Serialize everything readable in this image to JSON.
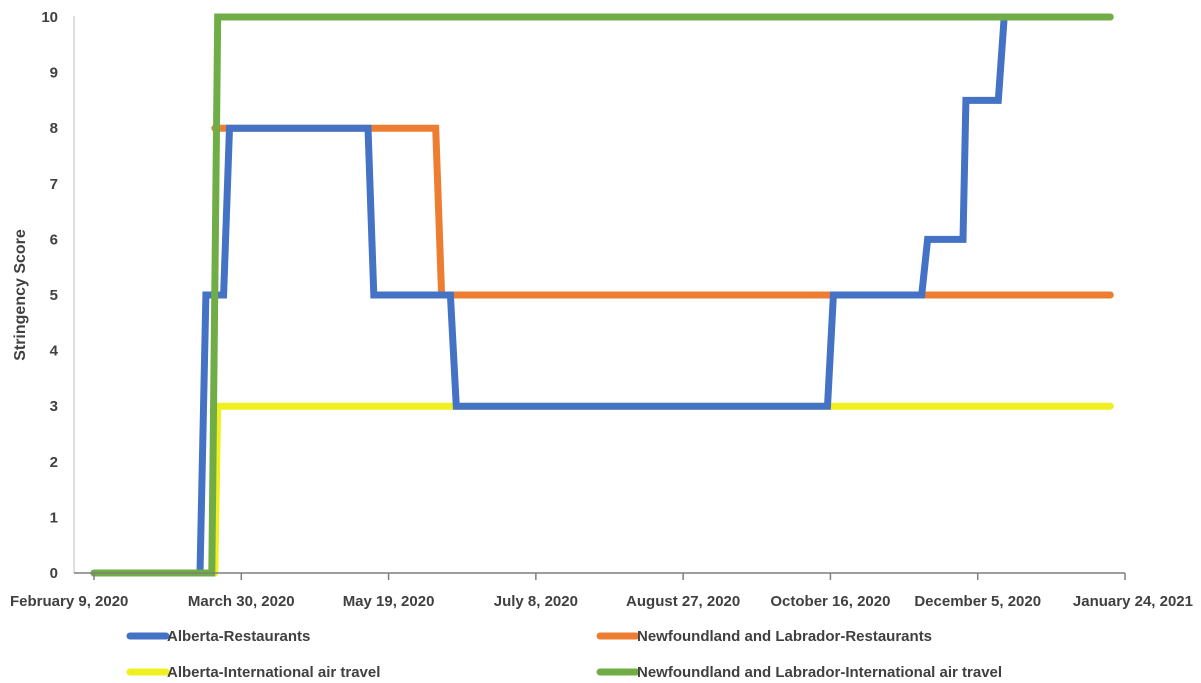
{
  "chart_data": {
    "type": "line",
    "title": "",
    "xlabel": "",
    "ylabel": "Stringency Score",
    "ylim": [
      0,
      10
    ],
    "yticks": [
      0,
      1,
      2,
      3,
      4,
      5,
      6,
      7,
      8,
      9,
      10
    ],
    "xlim": [
      "2020-02-09",
      "2021-01-24"
    ],
    "xtick_labels": [
      "February 9, 2020",
      "March 30, 2020",
      "May 19, 2020",
      "July 8, 2020",
      "August 27, 2020",
      "October 16, 2020",
      "December 5, 2020",
      "January 24, 2021"
    ],
    "grid": false,
    "legend_position": "bottom",
    "series": [
      {
        "name": "Alberta-Restaurants",
        "color": "#4472C4",
        "points": [
          [
            "2020-02-09",
            0
          ],
          [
            "2020-03-16",
            0
          ],
          [
            "2020-03-18",
            5
          ],
          [
            "2020-03-24",
            5
          ],
          [
            "2020-03-26",
            8
          ],
          [
            "2020-05-12",
            8
          ],
          [
            "2020-05-14",
            5
          ],
          [
            "2020-06-09",
            5
          ],
          [
            "2020-06-11",
            3
          ],
          [
            "2020-10-15",
            3
          ],
          [
            "2020-10-17",
            5
          ],
          [
            "2020-11-16",
            5
          ],
          [
            "2020-11-18",
            6
          ],
          [
            "2020-11-30",
            6
          ],
          [
            "2020-12-01",
            8.5
          ],
          [
            "2020-12-12",
            8.5
          ],
          [
            "2020-12-14",
            10
          ]
        ]
      },
      {
        "name": "Newfoundland and Labrador-Restaurants",
        "color": "#ED7D31",
        "points": [
          [
            "2020-03-21",
            8
          ],
          [
            "2020-06-04",
            8
          ],
          [
            "2020-06-06",
            5
          ],
          [
            "2021-01-19",
            5
          ]
        ]
      },
      {
        "name": "Alberta-International air travel",
        "color": "#F0F020",
        "points": [
          [
            "2020-03-21",
            0
          ],
          [
            "2020-03-22",
            3
          ],
          [
            "2021-01-19",
            3
          ]
        ]
      },
      {
        "name": "Newfoundland and Labrador-International air travel",
        "color": "#70AD47",
        "points": [
          [
            "2020-02-09",
            0
          ],
          [
            "2020-03-20",
            0
          ],
          [
            "2020-03-22",
            10
          ],
          [
            "2021-01-19",
            10
          ]
        ]
      }
    ]
  }
}
